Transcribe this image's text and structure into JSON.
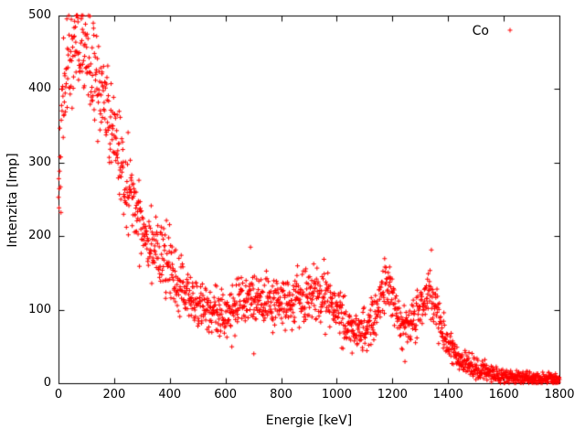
{
  "figure": {
    "background": "#ffffff",
    "axis_color": "#000000",
    "x_axis": {
      "label": "Energie [keV]",
      "min": 0,
      "max": 1800,
      "ticks": [
        0,
        200,
        400,
        600,
        800,
        1000,
        1200,
        1400,
        1600,
        1800
      ]
    },
    "y_axis": {
      "label": "Intenzita [Imp]",
      "min": 0,
      "max": 500,
      "ticks": [
        0,
        100,
        200,
        300,
        400,
        500
      ]
    },
    "legend": {
      "label": "Co",
      "marker": "plus",
      "marker_color": "#ff0000",
      "position": "top-right"
    }
  },
  "chart_data": {
    "type": "scatter",
    "title": "",
    "xlabel": "Energie [keV]",
    "ylabel": "Intenzita [Imp]",
    "xlim": [
      0,
      1800
    ],
    "ylim": [
      0,
      500
    ],
    "grid": false,
    "legend_position": "top-right",
    "series": [
      {
        "name": "Co",
        "marker": "plus",
        "color": "#ff0000",
        "marker_size": 5,
        "x_step_kev": 1,
        "noise_model": "gaussian_sd_proportional_to_sqrt_mean",
        "noise_scale": 1.7,
        "seed": 42,
        "envelope_mean_counts": [
          [
            0,
            280
          ],
          [
            10,
            340
          ],
          [
            20,
            400
          ],
          [
            40,
            445
          ],
          [
            60,
            460
          ],
          [
            90,
            455
          ],
          [
            110,
            435
          ],
          [
            130,
            415
          ],
          [
            150,
            395
          ],
          [
            170,
            370
          ],
          [
            190,
            345
          ],
          [
            210,
            320
          ],
          [
            230,
            295
          ],
          [
            250,
            268
          ],
          [
            270,
            245
          ],
          [
            290,
            225
          ],
          [
            310,
            210
          ],
          [
            330,
            196
          ],
          [
            350,
            184
          ],
          [
            370,
            172
          ],
          [
            390,
            160
          ],
          [
            410,
            148
          ],
          [
            430,
            136
          ],
          [
            450,
            126
          ],
          [
            470,
            117
          ],
          [
            490,
            110
          ],
          [
            510,
            104
          ],
          [
            530,
            100
          ],
          [
            550,
            97
          ],
          [
            570,
            95
          ],
          [
            590,
            95
          ],
          [
            610,
            97
          ],
          [
            630,
            100
          ],
          [
            650,
            105
          ],
          [
            670,
            110
          ],
          [
            690,
            114
          ],
          [
            710,
            112
          ],
          [
            730,
            107
          ],
          [
            750,
            105
          ],
          [
            770,
            106
          ],
          [
            790,
            108
          ],
          [
            810,
            110
          ],
          [
            830,
            112
          ],
          [
            850,
            114
          ],
          [
            870,
            116
          ],
          [
            890,
            118
          ],
          [
            910,
            120
          ],
          [
            930,
            122
          ],
          [
            950,
            120
          ],
          [
            970,
            112
          ],
          [
            990,
            102
          ],
          [
            1010,
            92
          ],
          [
            1030,
            83
          ],
          [
            1050,
            76
          ],
          [
            1070,
            71
          ],
          [
            1090,
            70
          ],
          [
            1110,
            74
          ],
          [
            1130,
            85
          ],
          [
            1150,
            105
          ],
          [
            1165,
            130
          ],
          [
            1173,
            142
          ],
          [
            1185,
            135
          ],
          [
            1200,
            112
          ],
          [
            1215,
            95
          ],
          [
            1230,
            82
          ],
          [
            1245,
            76
          ],
          [
            1260,
            76
          ],
          [
            1275,
            82
          ],
          [
            1290,
            92
          ],
          [
            1305,
            105
          ],
          [
            1320,
            118
          ],
          [
            1332,
            124
          ],
          [
            1345,
            115
          ],
          [
            1360,
            98
          ],
          [
            1375,
            80
          ],
          [
            1390,
            64
          ],
          [
            1405,
            52
          ],
          [
            1420,
            43
          ],
          [
            1435,
            36
          ],
          [
            1450,
            30
          ],
          [
            1470,
            25
          ],
          [
            1490,
            21
          ],
          [
            1510,
            18
          ],
          [
            1530,
            15
          ],
          [
            1550,
            13
          ],
          [
            1570,
            12
          ],
          [
            1590,
            10
          ],
          [
            1620,
            9
          ],
          [
            1660,
            8
          ],
          [
            1700,
            7
          ],
          [
            1750,
            6
          ],
          [
            1800,
            5
          ]
        ],
        "outliers": [
          [
            690,
            185
          ],
          [
            702,
            40
          ]
        ],
        "peaks_kev": [
          1173,
          1332
        ]
      }
    ]
  }
}
